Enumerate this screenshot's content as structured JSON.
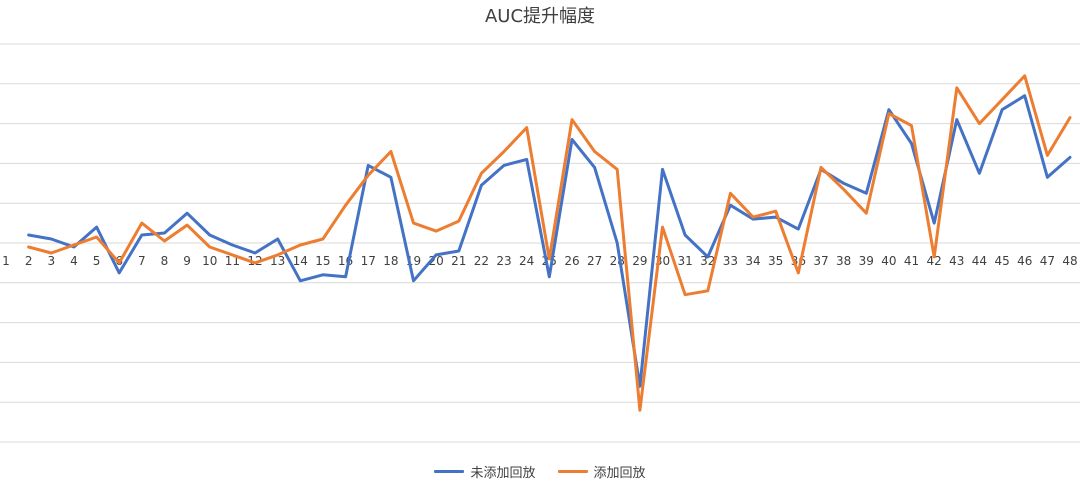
{
  "chart_data": {
    "type": "line",
    "title": "AUC提升幅度",
    "x": [
      "1",
      "2",
      "3",
      "4",
      "5",
      "6",
      "7",
      "8",
      "9",
      "10",
      "11",
      "12",
      "13",
      "14",
      "15",
      "16",
      "17",
      "18",
      "19",
      "20",
      "21",
      "22",
      "23",
      "24",
      "25",
      "26",
      "27",
      "28",
      "29",
      "30",
      "31",
      "32",
      "33",
      "34",
      "35",
      "36",
      "37",
      "38",
      "39",
      "40",
      "41",
      "42",
      "43",
      "44",
      "45",
      "46",
      "47",
      "48"
    ],
    "ylim": [
      -5,
      5
    ],
    "grid": true,
    "legend_position": "bottom",
    "series": [
      {
        "name": "未添加回放",
        "color": "#4472C4",
        "values": [
          null,
          0.2,
          0.1,
          -0.1,
          0.4,
          -0.75,
          0.2,
          0.25,
          0.75,
          0.2,
          -0.05,
          -0.25,
          0.1,
          -0.95,
          -0.8,
          -0.85,
          1.95,
          1.65,
          -0.95,
          -0.3,
          -0.2,
          1.45,
          1.95,
          2.1,
          -0.85,
          2.6,
          1.9,
          0.0,
          -3.6,
          1.85,
          0.2,
          -0.35,
          0.95,
          0.6,
          0.65,
          0.35,
          1.85,
          1.5,
          1.25,
          3.35,
          2.5,
          0.5,
          3.1,
          1.75,
          3.35,
          3.7,
          1.65,
          2.15
        ]
      },
      {
        "name": "添加回放",
        "color": "#ED7D31",
        "values": [
          null,
          -0.1,
          -0.25,
          -0.05,
          0.15,
          -0.5,
          0.5,
          0.05,
          0.45,
          -0.1,
          -0.3,
          -0.5,
          -0.3,
          -0.05,
          0.1,
          0.95,
          1.7,
          2.3,
          0.5,
          0.3,
          0.55,
          1.75,
          2.3,
          2.9,
          -0.4,
          3.1,
          2.3,
          1.85,
          -4.2,
          0.4,
          -1.3,
          -1.2,
          1.25,
          0.65,
          0.8,
          -0.75,
          1.9,
          1.35,
          0.75,
          3.25,
          2.95,
          -0.35,
          3.9,
          3.0,
          3.6,
          4.2,
          2.2,
          3.15
        ]
      }
    ]
  }
}
